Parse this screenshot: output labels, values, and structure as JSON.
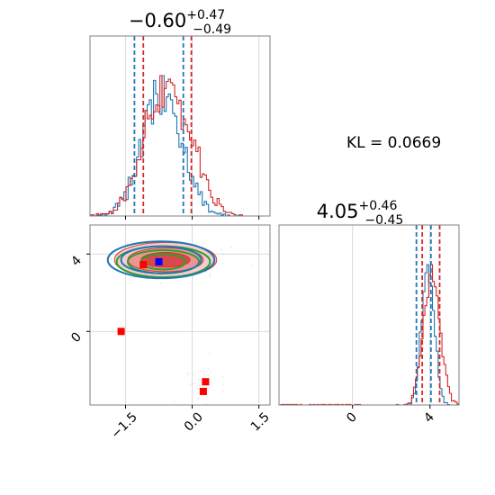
{
  "chart_data": [
    {
      "panel": "marginal-param-1",
      "type": "histogram",
      "title": {
        "main": "−0.60",
        "sup": "+0.47",
        "sub": "−0.49"
      },
      "xlim": [
        -2.3,
        1.75
      ],
      "x_ticks": [
        -1.5,
        0.0,
        1.5
      ],
      "grid": true,
      "series": [
        {
          "color": "#1f77b4",
          "bins": [
            -2.3,
            1.75
          ],
          "values": [
            0,
            0,
            0,
            0,
            0,
            0,
            0,
            0,
            0,
            0,
            0,
            0,
            0,
            0,
            0,
            0,
            0,
            0,
            0,
            0,
            0,
            0,
            0,
            0,
            0,
            0,
            0,
            0,
            0,
            0,
            0,
            0,
            0,
            0,
            0,
            0,
            0,
            0,
            0,
            0,
            0,
            0,
            0,
            0,
            0,
            0,
            0,
            0,
            0,
            0,
            0,
            0,
            0,
            0,
            0,
            0,
            0,
            0,
            0,
            0,
            0,
            0,
            0,
            0,
            0,
            0,
            0,
            0,
            0,
            0
          ]
        },
        {
          "color": "#d62728"
        }
      ],
      "quantile_lines": [
        {
          "color": "#1f77b4",
          "x": [
            -1.3,
            -0.2
          ]
        },
        {
          "color": "#d62728",
          "x": [
            -1.1,
            -0.02
          ]
        }
      ]
    },
    {
      "panel": "joint-2d",
      "type": "contour",
      "xlim": [
        -2.3,
        1.75
      ],
      "ylim": [
        -3.8,
        5.5
      ],
      "x_ticks": [
        -1.5,
        0.0,
        1.5
      ],
      "y_ticks": [
        0,
        4
      ],
      "grid": true,
      "contour_sets": [
        {
          "color": "#d62728",
          "filled": true,
          "center": [
            -0.6,
            3.7
          ],
          "levels_sigma": [
            0.45,
            0.3,
            0.15
          ]
        },
        {
          "color": "#2ca02c",
          "filled": false,
          "center": [
            -0.65,
            3.6
          ]
        },
        {
          "color": "#1f77b4",
          "filled": false,
          "center": [
            -0.7,
            3.7
          ]
        }
      ],
      "markers": [
        {
          "color": "#ff0000",
          "shape": "square",
          "x": -1.6,
          "y": 0.0
        },
        {
          "color": "#ff0000",
          "shape": "square",
          "x": 0.3,
          "y": -2.6
        },
        {
          "color": "#ff0000",
          "shape": "square",
          "x": 0.25,
          "y": -3.1
        },
        {
          "color": "#ff0000",
          "shape": "square",
          "x": -1.1,
          "y": 3.45
        },
        {
          "color": "#0000ff",
          "shape": "square",
          "x": -0.75,
          "y": 3.6
        }
      ]
    },
    {
      "panel": "marginal-param-2",
      "type": "histogram",
      "title": {
        "main": "4.05",
        "sup": "+0.46",
        "sub": "−0.45"
      },
      "xlim": [
        -3.8,
        5.5
      ],
      "x_ticks": [
        0,
        4
      ],
      "grid": true,
      "series": [
        {
          "color": "#1f77b4"
        },
        {
          "color": "#d62728"
        }
      ],
      "quantile_lines": [
        {
          "color": "#1f77b4",
          "x": [
            3.3,
            4.05
          ]
        },
        {
          "color": "#d62728",
          "x": [
            3.6,
            4.5
          ]
        }
      ]
    }
  ],
  "annotation": "KL = 0.0669",
  "labels": {
    "xtick_a": "−1.5",
    "xtick_b": "0.0",
    "xtick_c": "1.5",
    "ytick_a": "4",
    "ytick_b": "0",
    "x2tick_a": "0",
    "x2tick_b": "4"
  }
}
